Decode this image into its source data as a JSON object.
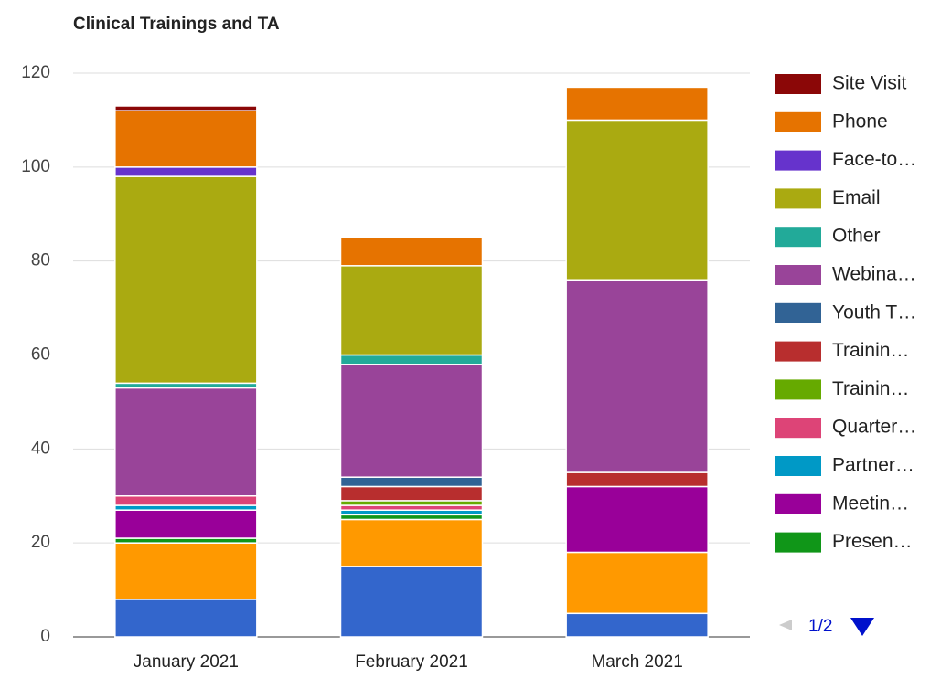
{
  "chart_data": {
    "type": "stacked_bar",
    "title": "Clinical Trainings and TA",
    "categories": [
      "January 2021",
      "February 2021",
      "March 2021"
    ],
    "series": [
      {
        "color": "#3366cc",
        "values": [
          8,
          15,
          5
        ]
      },
      {
        "color": "#ff9900",
        "values": [
          12,
          10,
          13
        ]
      },
      {
        "name": "Presen…",
        "color": "#109618",
        "values": [
          1,
          1,
          0
        ]
      },
      {
        "name": "Meetin…",
        "color": "#990099",
        "values": [
          6,
          0,
          14
        ]
      },
      {
        "name": "Partner…",
        "color": "#0099c6",
        "values": [
          1,
          1,
          0
        ]
      },
      {
        "name": "Quarter…",
        "color": "#dd4477",
        "values": [
          2,
          1,
          0
        ]
      },
      {
        "name": "Trainin…",
        "color": "#66aa00",
        "values": [
          0,
          1,
          0
        ]
      },
      {
        "name": "Trainin…",
        "color": "#b82e2e",
        "values": [
          0,
          3,
          3
        ]
      },
      {
        "name": "Youth T…",
        "color": "#316395",
        "values": [
          0,
          2,
          0
        ]
      },
      {
        "name": "Webina…",
        "color": "#994499",
        "values": [
          23,
          24,
          41
        ]
      },
      {
        "name": "Other",
        "color": "#22aa99",
        "values": [
          1,
          2,
          0
        ]
      },
      {
        "name": "Email",
        "color": "#aaaa11",
        "values": [
          44,
          19,
          34
        ]
      },
      {
        "name": "Face-to…",
        "color": "#6633cc",
        "values": [
          2,
          0,
          0
        ]
      },
      {
        "name": "Phone",
        "color": "#e67300",
        "values": [
          12,
          6,
          7
        ]
      },
      {
        "name": "Site Visit",
        "color": "#8b0707",
        "values": [
          1,
          0,
          0
        ]
      }
    ],
    "ylim": [
      0,
      120
    ],
    "yticks": [
      0,
      20,
      40,
      60,
      80,
      100,
      120
    ],
    "grid": true,
    "legend": "right",
    "legend_page": "1/2"
  }
}
